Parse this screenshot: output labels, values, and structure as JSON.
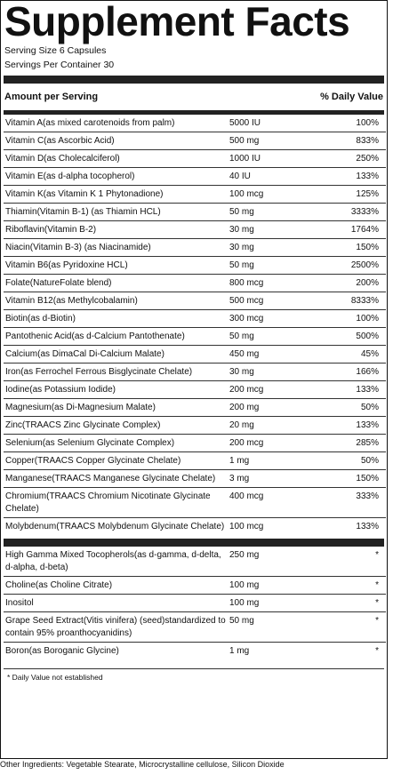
{
  "title": "Supplement Facts",
  "serving_size": "Serving Size 6 Capsules",
  "servings_per_container": "Servings Per Container 30",
  "header": {
    "amount": "Amount per Serving",
    "dv": "% Daily Value"
  },
  "section1": [
    {
      "name": "Vitamin A(as mixed carotenoids from palm)",
      "amount": "5000 IU",
      "dv": "100%"
    },
    {
      "name": "Vitamin C(as Ascorbic Acid)",
      "amount": "500 mg",
      "dv": "833%"
    },
    {
      "name": "Vitamin D(as Cholecalciferol)",
      "amount": "1000 IU",
      "dv": "250%"
    },
    {
      "name": "Vitamin E(as d-alpha tocopherol)",
      "amount": "40 IU",
      "dv": "133%"
    },
    {
      "name": "Vitamin K(as Vitamin K 1 Phytonadione)",
      "amount": "100 mcg",
      "dv": "125%"
    },
    {
      "name": "Thiamin(Vitamin B-1) (as Thiamin HCL)",
      "amount": "50 mg",
      "dv": "3333%"
    },
    {
      "name": "Riboflavin(Vitamin B-2)",
      "amount": "30 mg",
      "dv": "1764%"
    },
    {
      "name": "Niacin(Vitamin B-3) (as Niacinamide)",
      "amount": "30 mg",
      "dv": "150%"
    },
    {
      "name": "Vitamin B6(as Pyridoxine HCL)",
      "amount": "50 mg",
      "dv": "2500%"
    },
    {
      "name": "Folate(NatureFolate blend)",
      "amount": "800 mcg",
      "dv": "200%"
    },
    {
      "name": "Vitamin B12(as Methylcobalamin)",
      "amount": "500 mcg",
      "dv": "8333%"
    },
    {
      "name": "Biotin(as d-Biotin)",
      "amount": "300 mcg",
      "dv": "100%"
    },
    {
      "name": "Pantothenic Acid(as d-Calcium Pantothenate)",
      "amount": "50 mg",
      "dv": "500%"
    },
    {
      "name": "Calcium(as DimaCal Di-Calcium Malate)",
      "amount": "450 mg",
      "dv": "45%"
    },
    {
      "name": "Iron(as Ferrochel Ferrous Bisglycinate Chelate)",
      "amount": "30 mg",
      "dv": "166%"
    },
    {
      "name": "Iodine(as Potassium Iodide)",
      "amount": "200 mcg",
      "dv": "133%"
    },
    {
      "name": "Magnesium(as Di-Magnesium Malate)",
      "amount": "200 mg",
      "dv": "50%"
    },
    {
      "name": "Zinc(TRAACS Zinc Glycinate Complex)",
      "amount": "20 mg",
      "dv": "133%"
    },
    {
      "name": "Selenium(as Selenium Glycinate Complex)",
      "amount": "200 mcg",
      "dv": "285%"
    },
    {
      "name": "Copper(TRAACS Copper Glycinate Chelate)",
      "amount": "1 mg",
      "dv": "50%"
    },
    {
      "name": "Manganese(TRAACS Manganese Glycinate Chelate)",
      "amount": "3 mg",
      "dv": "150%"
    },
    {
      "name": "Chromium(TRAACS Chromium Nicotinate Glycinate Chelate)",
      "amount": "400 mcg",
      "dv": "333%"
    },
    {
      "name": "Molybdenum(TRAACS Molybdenum Glycinate Chelate)",
      "amount": "100 mcg",
      "dv": "133%"
    }
  ],
  "section2": [
    {
      "name": "High Gamma Mixed Tocopherols(as d-gamma, d-delta, d-alpha, d-beta)",
      "amount": "250 mg",
      "dv": "*"
    },
    {
      "name": "Choline(as Choline Citrate)",
      "amount": "100 mg",
      "dv": "*"
    },
    {
      "name": "Inositol",
      "amount": "100 mg",
      "dv": "*"
    },
    {
      "name": "Grape Seed Extract(Vitis vinifera) (seed)standardized to contain 95% proanthocyanidins)",
      "amount": "50 mg",
      "dv": "*"
    },
    {
      "name": "Boron(as Boroganic Glycine)",
      "amount": "1 mg",
      "dv": "*"
    }
  ],
  "footnote": "* Daily Value not established",
  "other_ingredients": "Other Ingredients: Vegetable Stearate, Microcrystalline cellulose, Silicon Dioxide"
}
